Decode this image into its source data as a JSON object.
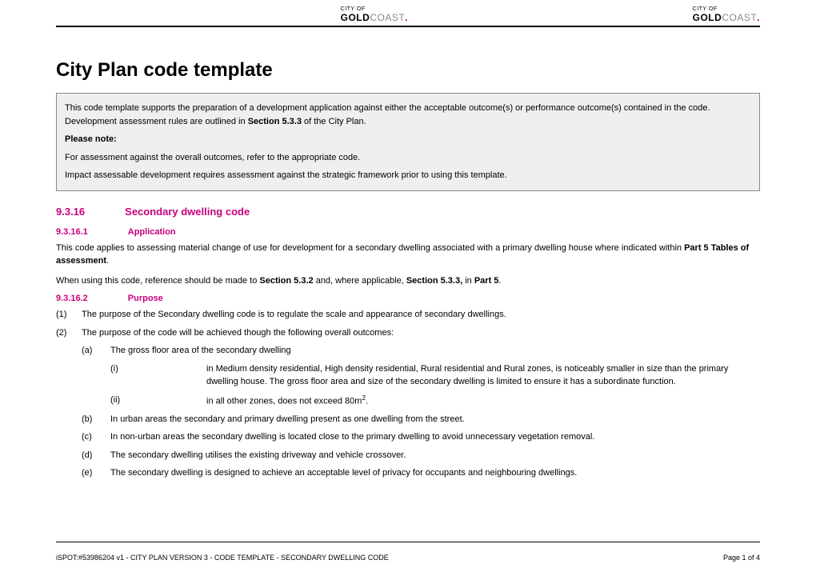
{
  "logo": {
    "top": "CITY OF",
    "bold": "GOLD",
    "light": "COAST",
    "dot": "."
  },
  "title": "City Plan code template",
  "info_box": {
    "p1a": "This code template supports the preparation of a development application against either the acceptable outcome(s) or performance outcome(s) contained in the code. Development assessment rules are outlined in ",
    "p1b": "Section 5.3.3",
    "p1c": " of the City Plan.",
    "p2": "Please note:",
    "p3": "For assessment against the overall outcomes, refer to the appropriate code.",
    "p4": "Impact assessable development requires assessment against the strategic framework prior to using this template."
  },
  "section": {
    "num": "9.3.16",
    "title": "Secondary dwelling code"
  },
  "sub1": {
    "num": "9.3.16.1",
    "title": "Application"
  },
  "app_p1a": "This code applies to assessing material change of use for development for a secondary dwelling associated with a primary dwelling house where indicated within ",
  "app_p1b": "Part 5 Tables of assessment",
  "app_p1c": ".",
  "app_p2a": "When using this code, reference should be made to ",
  "app_p2b": "Section 5.3.2",
  "app_p2c": " and, where applicable, ",
  "app_p2d": "Section 5.3.3,",
  "app_p2e": " in ",
  "app_p2f": "Part 5",
  "app_p2g": ".",
  "sub2": {
    "num": "9.3.16.2",
    "title": "Purpose"
  },
  "l1": {
    "m1": "(1)",
    "t1": "The purpose of the Secondary dwelling code is to regulate the scale and appearance of secondary dwellings.",
    "m2": "(2)",
    "t2": "The purpose of the code will be achieved though the following overall outcomes:"
  },
  "l2": {
    "ma": "(a)",
    "ta": "The gross floor area of the secondary dwelling",
    "mb": "(b)",
    "tb": "In urban areas the secondary and primary dwelling present as one dwelling from the street.",
    "mc": "(c)",
    "tc": "In non-urban areas the secondary dwelling is located close to the primary dwelling to avoid unnecessary vegetation removal.",
    "md": "(d)",
    "td": "The secondary dwelling utilises the existing driveway and vehicle crossover.",
    "me": "(e)",
    "te": "The secondary dwelling is designed to achieve an acceptable level of privacy for occupants and neighbouring dwellings."
  },
  "l3": {
    "mi": "(i)",
    "ti": "in Medium density residential, High density residential, Rural residential and Rural zones, is noticeably smaller in size than the primary dwelling house. The gross floor area and size of the secondary dwelling is limited to ensure it has a subordinate function.",
    "mii": "(ii)",
    "tii_a": "in all other zones, does not exceed 80m",
    "tii_b": "2",
    "tii_c": "."
  },
  "footer": {
    "left": "iSPOT:#53986204 v1 - CITY PLAN VERSION 3 - CODE TEMPLATE - SECONDARY DWELLING CODE",
    "right": "Page 1 of 4"
  }
}
